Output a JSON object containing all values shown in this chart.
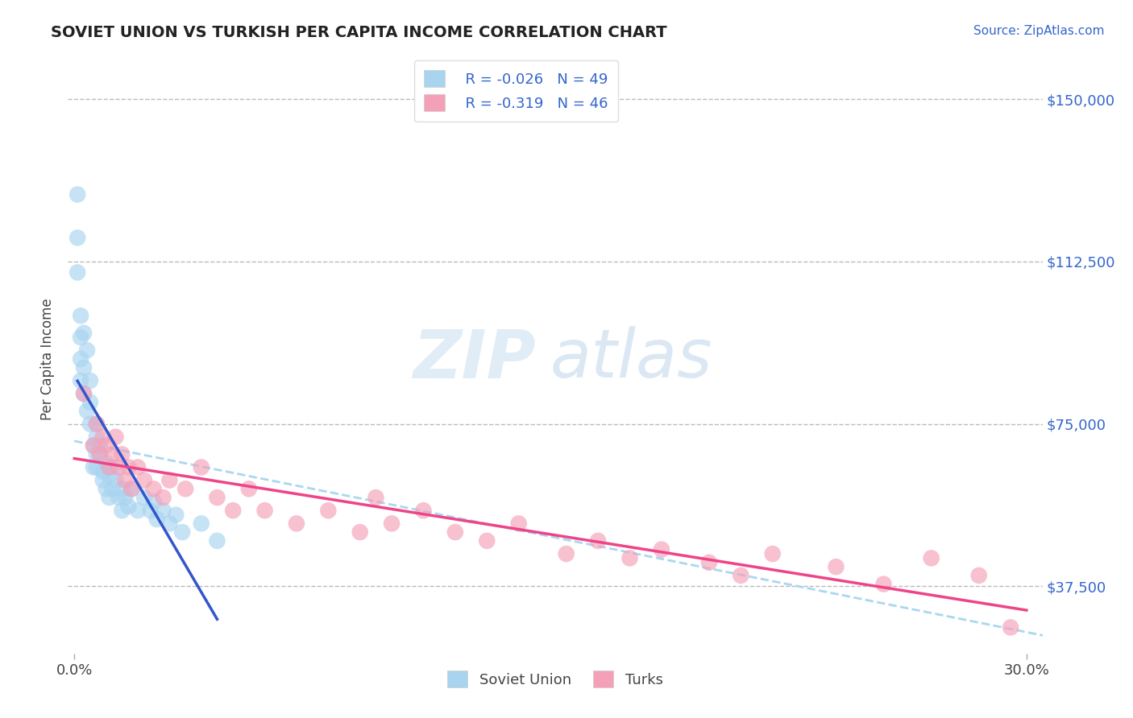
{
  "title": "SOVIET UNION VS TURKISH PER CAPITA INCOME CORRELATION CHART",
  "source": "Source: ZipAtlas.com",
  "ylabel": "Per Capita Income",
  "xlim": [
    -0.002,
    0.305
  ],
  "ylim": [
    22000,
    158000
  ],
  "yticks": [
    37500,
    75000,
    112500,
    150000
  ],
  "xticks": [
    0.0,
    0.3
  ],
  "xticklabels": [
    "0.0%",
    "30.0%"
  ],
  "yticklabels": [
    "$37,500",
    "$75,000",
    "$112,500",
    "$150,000"
  ],
  "soviet_color": "#A8D4F0",
  "turks_color": "#F4A0B8",
  "soviet_line_color": "#3355CC",
  "turks_line_color": "#EE4488",
  "dashed_line_color": "#A8D8F0",
  "legend_R1": "R = -0.026",
  "legend_N1": "N = 49",
  "legend_R2": "R = -0.319",
  "legend_N2": "N = 46",
  "legend_label1": "Soviet Union",
  "legend_label2": "Turks",
  "watermark_zip": "ZIP",
  "watermark_atlas": "atlas",
  "background_color": "#FFFFFF",
  "grid_color": "#BBBBBB",
  "soviet_x": [
    0.001,
    0.001,
    0.001,
    0.002,
    0.002,
    0.002,
    0.002,
    0.003,
    0.003,
    0.003,
    0.004,
    0.004,
    0.005,
    0.005,
    0.005,
    0.006,
    0.006,
    0.007,
    0.007,
    0.007,
    0.007,
    0.008,
    0.008,
    0.009,
    0.009,
    0.01,
    0.01,
    0.011,
    0.011,
    0.012,
    0.012,
    0.013,
    0.014,
    0.015,
    0.015,
    0.016,
    0.017,
    0.018,
    0.02,
    0.022,
    0.024,
    0.025,
    0.026,
    0.028,
    0.03,
    0.032,
    0.034,
    0.04,
    0.045
  ],
  "soviet_y": [
    128000,
    118000,
    110000,
    100000,
    95000,
    90000,
    85000,
    96000,
    88000,
    82000,
    78000,
    92000,
    85000,
    80000,
    75000,
    70000,
    65000,
    72000,
    68000,
    75000,
    65000,
    70000,
    68000,
    64000,
    62000,
    66000,
    60000,
    63000,
    58000,
    65000,
    60000,
    62000,
    58000,
    60000,
    55000,
    58000,
    56000,
    60000,
    55000,
    58000,
    55000,
    57000,
    53000,
    55000,
    52000,
    54000,
    50000,
    52000,
    48000
  ],
  "turks_x": [
    0.003,
    0.006,
    0.007,
    0.008,
    0.009,
    0.01,
    0.011,
    0.012,
    0.013,
    0.014,
    0.015,
    0.016,
    0.017,
    0.018,
    0.02,
    0.022,
    0.025,
    0.028,
    0.03,
    0.035,
    0.04,
    0.045,
    0.05,
    0.055,
    0.06,
    0.07,
    0.08,
    0.09,
    0.095,
    0.1,
    0.11,
    0.12,
    0.13,
    0.14,
    0.155,
    0.165,
    0.175,
    0.185,
    0.2,
    0.21,
    0.22,
    0.24,
    0.255,
    0.27,
    0.285,
    0.295
  ],
  "turks_y": [
    82000,
    70000,
    75000,
    68000,
    72000,
    70000,
    65000,
    68000,
    72000,
    65000,
    68000,
    62000,
    65000,
    60000,
    65000,
    62000,
    60000,
    58000,
    62000,
    60000,
    65000,
    58000,
    55000,
    60000,
    55000,
    52000,
    55000,
    50000,
    58000,
    52000,
    55000,
    50000,
    48000,
    52000,
    45000,
    48000,
    44000,
    46000,
    43000,
    40000,
    45000,
    42000,
    38000,
    44000,
    40000,
    28000
  ]
}
